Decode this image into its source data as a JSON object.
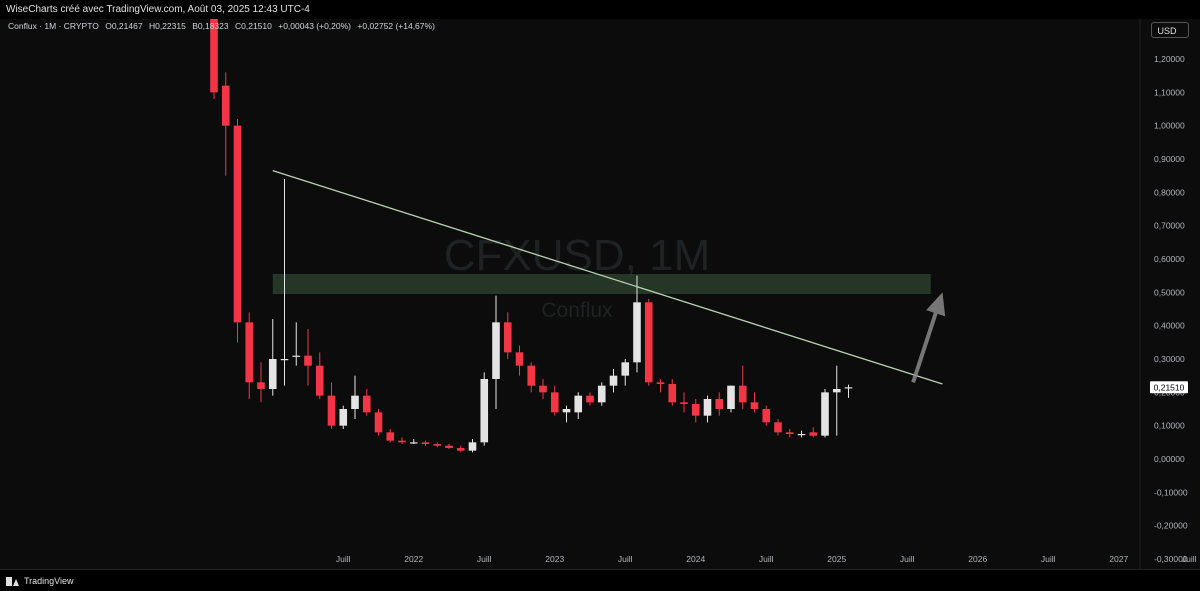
{
  "header": {
    "text": "WiseCharts créé avec TradingView.com, Août 03, 2025 12:43 UTC-4"
  },
  "legend": {
    "symbol": "Conflux · 1M · CRYPTO",
    "open": "O0,21467",
    "high": "H0,22315",
    "low": "B0,18323",
    "close": "C0,21510",
    "change": "+0,00043 (+0,20%)",
    "change2": "+0,02752 (+14,67%)"
  },
  "currency_button": "USD",
  "watermark": {
    "ticker": "CFXUSD, 1M",
    "name": "Conflux"
  },
  "footer": {
    "brand": "TradingView"
  },
  "colors": {
    "up": "#e3e3e3",
    "down": "#f23645",
    "trendline": "#b8d4b0",
    "zone": "#3a5a3c",
    "arrow": "#8a8a8a",
    "price_tag": "#ffffff"
  },
  "chart_data": {
    "type": "candlestick",
    "interval": "1M",
    "ylim": [
      -0.33,
      1.32
    ],
    "yticks": [
      "1,20000",
      "1,10000",
      "1,00000",
      "0,90000",
      "0,80000",
      "0,70000",
      "0,60000",
      "0,50000",
      "0,40000",
      "0,30000",
      "0,20000",
      "0,10000",
      "0,00000",
      "-0,10000",
      "-0,20000",
      "-0,30000"
    ],
    "ytick_values": [
      1.2,
      1.1,
      1.0,
      0.9,
      0.8,
      0.7,
      0.6,
      0.5,
      0.4,
      0.3,
      0.2,
      0.1,
      0.0,
      -0.1,
      -0.2,
      -0.3
    ],
    "xticks": [
      {
        "label": "Juill",
        "month": 11
      },
      {
        "label": "2022",
        "month": 17
      },
      {
        "label": "Juill",
        "month": 23
      },
      {
        "label": "2023",
        "month": 29
      },
      {
        "label": "Juill",
        "month": 35
      },
      {
        "label": "2024",
        "month": 41
      },
      {
        "label": "Juill",
        "month": 47
      },
      {
        "label": "2025",
        "month": 53
      },
      {
        "label": "Juill",
        "month": 59
      },
      {
        "label": "2026",
        "month": 65
      },
      {
        "label": "Juill",
        "month": 71
      },
      {
        "label": "2027",
        "month": 77
      },
      {
        "label": "Juill",
        "month": 83
      }
    ],
    "last_price_label": "0,21510",
    "last_price": 0.2151,
    "candles": [
      {
        "m": 0,
        "o": 1.45,
        "h": 1.5,
        "l": 1.08,
        "c": 1.1
      },
      {
        "m": 1,
        "o": 1.12,
        "h": 1.16,
        "l": 0.85,
        "c": 1.0
      },
      {
        "m": 2,
        "o": 1.0,
        "h": 1.02,
        "l": 0.35,
        "c": 0.41
      },
      {
        "m": 3,
        "o": 0.41,
        "h": 0.44,
        "l": 0.18,
        "c": 0.23
      },
      {
        "m": 4,
        "o": 0.23,
        "h": 0.29,
        "l": 0.17,
        "c": 0.21
      },
      {
        "m": 5,
        "o": 0.21,
        "h": 0.42,
        "l": 0.19,
        "c": 0.3
      },
      {
        "m": 6,
        "o": 0.3,
        "h": 0.84,
        "l": 0.22,
        "c": 0.3
      },
      {
        "m": 7,
        "o": 0.31,
        "h": 0.41,
        "l": 0.28,
        "c": 0.31
      },
      {
        "m": 8,
        "o": 0.31,
        "h": 0.39,
        "l": 0.22,
        "c": 0.28
      },
      {
        "m": 9,
        "o": 0.28,
        "h": 0.32,
        "l": 0.18,
        "c": 0.19
      },
      {
        "m": 10,
        "o": 0.19,
        "h": 0.23,
        "l": 0.09,
        "c": 0.1
      },
      {
        "m": 11,
        "o": 0.1,
        "h": 0.16,
        "l": 0.09,
        "c": 0.15
      },
      {
        "m": 12,
        "o": 0.15,
        "h": 0.25,
        "l": 0.12,
        "c": 0.19
      },
      {
        "m": 13,
        "o": 0.19,
        "h": 0.21,
        "l": 0.13,
        "c": 0.14
      },
      {
        "m": 14,
        "o": 0.14,
        "h": 0.15,
        "l": 0.07,
        "c": 0.08
      },
      {
        "m": 15,
        "o": 0.08,
        "h": 0.09,
        "l": 0.05,
        "c": 0.055
      },
      {
        "m": 16,
        "o": 0.055,
        "h": 0.065,
        "l": 0.045,
        "c": 0.05
      },
      {
        "m": 17,
        "o": 0.05,
        "h": 0.06,
        "l": 0.045,
        "c": 0.05
      },
      {
        "m": 18,
        "o": 0.05,
        "h": 0.055,
        "l": 0.04,
        "c": 0.045
      },
      {
        "m": 19,
        "o": 0.045,
        "h": 0.05,
        "l": 0.035,
        "c": 0.04
      },
      {
        "m": 20,
        "o": 0.04,
        "h": 0.045,
        "l": 0.03,
        "c": 0.033
      },
      {
        "m": 21,
        "o": 0.033,
        "h": 0.04,
        "l": 0.02,
        "c": 0.025
      },
      {
        "m": 22,
        "o": 0.025,
        "h": 0.06,
        "l": 0.02,
        "c": 0.05
      },
      {
        "m": 23,
        "o": 0.05,
        "h": 0.26,
        "l": 0.04,
        "c": 0.24
      },
      {
        "m": 24,
        "o": 0.24,
        "h": 0.49,
        "l": 0.15,
        "c": 0.41
      },
      {
        "m": 25,
        "o": 0.41,
        "h": 0.44,
        "l": 0.3,
        "c": 0.32
      },
      {
        "m": 26,
        "o": 0.32,
        "h": 0.34,
        "l": 0.25,
        "c": 0.28
      },
      {
        "m": 27,
        "o": 0.28,
        "h": 0.29,
        "l": 0.2,
        "c": 0.22
      },
      {
        "m": 28,
        "o": 0.22,
        "h": 0.24,
        "l": 0.18,
        "c": 0.2
      },
      {
        "m": 29,
        "o": 0.2,
        "h": 0.22,
        "l": 0.13,
        "c": 0.14
      },
      {
        "m": 30,
        "o": 0.14,
        "h": 0.16,
        "l": 0.11,
        "c": 0.15
      },
      {
        "m": 31,
        "o": 0.14,
        "h": 0.2,
        "l": 0.12,
        "c": 0.19
      },
      {
        "m": 32,
        "o": 0.19,
        "h": 0.2,
        "l": 0.16,
        "c": 0.17
      },
      {
        "m": 33,
        "o": 0.17,
        "h": 0.23,
        "l": 0.16,
        "c": 0.22
      },
      {
        "m": 34,
        "o": 0.22,
        "h": 0.27,
        "l": 0.2,
        "c": 0.25
      },
      {
        "m": 35,
        "o": 0.25,
        "h": 0.3,
        "l": 0.22,
        "c": 0.29
      },
      {
        "m": 36,
        "o": 0.29,
        "h": 0.55,
        "l": 0.26,
        "c": 0.47
      },
      {
        "m": 37,
        "o": 0.47,
        "h": 0.48,
        "l": 0.22,
        "c": 0.23
      },
      {
        "m": 38,
        "o": 0.23,
        "h": 0.24,
        "l": 0.2,
        "c": 0.225
      },
      {
        "m": 39,
        "o": 0.225,
        "h": 0.24,
        "l": 0.16,
        "c": 0.17
      },
      {
        "m": 40,
        "o": 0.17,
        "h": 0.2,
        "l": 0.14,
        "c": 0.165
      },
      {
        "m": 41,
        "o": 0.165,
        "h": 0.18,
        "l": 0.11,
        "c": 0.13
      },
      {
        "m": 42,
        "o": 0.13,
        "h": 0.19,
        "l": 0.11,
        "c": 0.18
      },
      {
        "m": 43,
        "o": 0.18,
        "h": 0.2,
        "l": 0.13,
        "c": 0.15
      },
      {
        "m": 44,
        "o": 0.15,
        "h": 0.22,
        "l": 0.14,
        "c": 0.22
      },
      {
        "m": 45,
        "o": 0.22,
        "h": 0.28,
        "l": 0.15,
        "c": 0.17
      },
      {
        "m": 46,
        "o": 0.17,
        "h": 0.2,
        "l": 0.14,
        "c": 0.15
      },
      {
        "m": 47,
        "o": 0.15,
        "h": 0.16,
        "l": 0.1,
        "c": 0.11
      },
      {
        "m": 48,
        "o": 0.11,
        "h": 0.12,
        "l": 0.07,
        "c": 0.08
      },
      {
        "m": 49,
        "o": 0.08,
        "h": 0.09,
        "l": 0.065,
        "c": 0.075
      },
      {
        "m": 50,
        "o": 0.075,
        "h": 0.085,
        "l": 0.065,
        "c": 0.075
      },
      {
        "m": 51,
        "o": 0.08,
        "h": 0.095,
        "l": 0.065,
        "c": 0.07
      },
      {
        "m": 52,
        "o": 0.07,
        "h": 0.21,
        "l": 0.065,
        "c": 0.2
      },
      {
        "m": 53,
        "o": 0.2,
        "h": 0.28,
        "l": 0.07,
        "c": 0.21
      },
      {
        "m": 54,
        "o": 0.21467,
        "h": 0.22315,
        "l": 0.18323,
        "c": 0.2151
      }
    ],
    "trendline": {
      "from": {
        "m": 5,
        "v": 0.865
      },
      "to": {
        "m": 62,
        "v": 0.225
      }
    },
    "zone": {
      "from_m": 5,
      "to_m": 61,
      "top": 0.555,
      "bottom": 0.495
    },
    "arrow": {
      "from": {
        "m": 59.5,
        "v": 0.23
      },
      "to": {
        "m": 62,
        "v": 0.5
      }
    }
  }
}
